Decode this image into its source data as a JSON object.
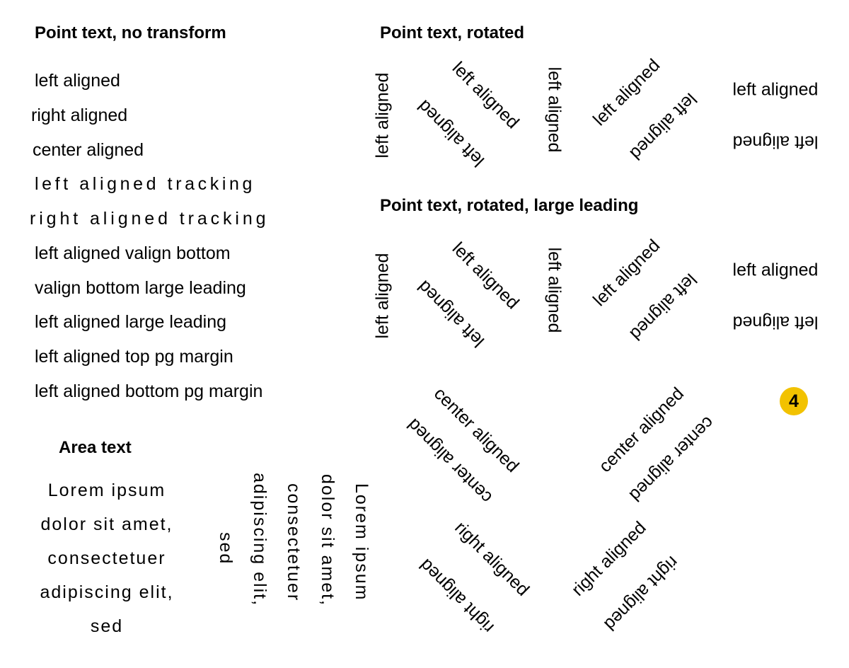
{
  "headings": {
    "no_transform": "Point text, no transform",
    "rotated": "Point text, rotated",
    "rotated_large_leading": "Point text, rotated, large leading",
    "area_text": "Area text"
  },
  "point_text": [
    "left aligned",
    "right aligned",
    "center aligned",
    "left aligned tracking",
    "right aligned tracking",
    "left aligned valign bottom",
    "valign bottom large leading",
    "left aligned large leading",
    "left aligned top pg margin",
    "left aligned bottom pg margin"
  ],
  "rotated_labels": {
    "left": "left aligned",
    "center": "center aligned",
    "right": "right aligned"
  },
  "area_lines": [
    "Lorem ipsum",
    "dolor sit amet,",
    "consectetuer",
    "adipiscing elit,",
    "sed"
  ],
  "badge": "4",
  "colors": {
    "badge": "#f2c200",
    "text": "#000000",
    "background": "#ffffff"
  }
}
